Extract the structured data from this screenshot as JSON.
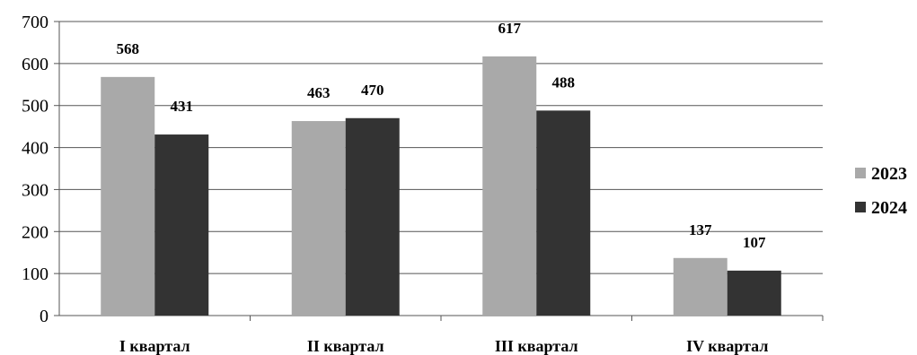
{
  "chart_data": {
    "type": "bar",
    "categories": [
      "I квартал",
      "II квартал",
      "III квартал",
      "IV квартал"
    ],
    "series": [
      {
        "name": "2023",
        "values": [
          568,
          463,
          617,
          137
        ],
        "color": "#a9a9a9"
      },
      {
        "name": "2024",
        "values": [
          431,
          470,
          488,
          107
        ],
        "color": "#333333"
      }
    ],
    "yticks": [
      "0",
      "100",
      "200",
      "300",
      "400",
      "500",
      "600",
      "700"
    ],
    "ylim": [
      0,
      700
    ],
    "grid": true,
    "legend": "right"
  }
}
